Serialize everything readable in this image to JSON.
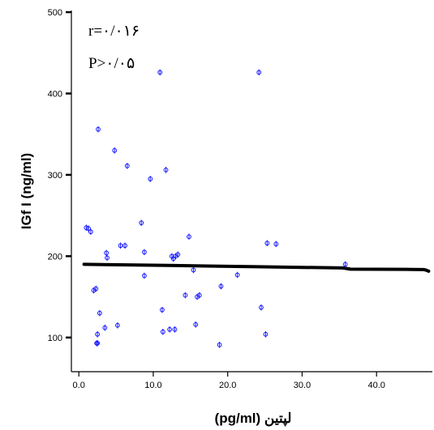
{
  "chart_data": {
    "type": "scatter",
    "xlabel": "لپتین (pg/ml)",
    "ylabel": "IGf I (ng/ml)",
    "xlim": [
      -1,
      47.5
    ],
    "ylim": [
      58,
      502
    ],
    "xticks": [
      0,
      10,
      20,
      30,
      40
    ],
    "xtick_labels": [
      "0.0",
      "10.0",
      "20.0",
      "30.0",
      "40.0"
    ],
    "yticks": [
      100,
      200,
      300,
      400,
      500
    ],
    "ytick_labels": [
      "100",
      "200",
      "300",
      "400",
      "500"
    ],
    "annotations": [
      "r=۰/۰۱۶",
      "P>۰/۰۵"
    ],
    "grid": false,
    "marker_color": "#1a1aff",
    "fit_color": "#000000",
    "points": [
      [
        1.0,
        235
      ],
      [
        1.3,
        234
      ],
      [
        1.6,
        230
      ],
      [
        2.0,
        158
      ],
      [
        2.3,
        160
      ],
      [
        2.4,
        93
      ],
      [
        2.5,
        93
      ],
      [
        2.5,
        104
      ],
      [
        2.6,
        356
      ],
      [
        2.8,
        130
      ],
      [
        3.5,
        112
      ],
      [
        3.7,
        204
      ],
      [
        3.8,
        198
      ],
      [
        4.8,
        330
      ],
      [
        5.2,
        115
      ],
      [
        5.6,
        213
      ],
      [
        6.2,
        213
      ],
      [
        6.5,
        311
      ],
      [
        8.4,
        241
      ],
      [
        8.8,
        176
      ],
      [
        8.8,
        205
      ],
      [
        9.6,
        295
      ],
      [
        10.9,
        426
      ],
      [
        11.2,
        134
      ],
      [
        11.3,
        107
      ],
      [
        11.7,
        306
      ],
      [
        12.2,
        110
      ],
      [
        12.5,
        200
      ],
      [
        12.7,
        197
      ],
      [
        12.9,
        110
      ],
      [
        13.0,
        200
      ],
      [
        13.3,
        202
      ],
      [
        14.3,
        152
      ],
      [
        14.8,
        224
      ],
      [
        15.4,
        183
      ],
      [
        15.7,
        116
      ],
      [
        15.9,
        150
      ],
      [
        16.2,
        152
      ],
      [
        18.9,
        91
      ],
      [
        19.1,
        163
      ],
      [
        21.3,
        177
      ],
      [
        24.2,
        426
      ],
      [
        24.5,
        137
      ],
      [
        25.1,
        104
      ],
      [
        25.3,
        216
      ],
      [
        26.5,
        215
      ],
      [
        35.8,
        190
      ]
    ],
    "fit_line": {
      "x": [
        0.7,
        12,
        24,
        35.5,
        36.5,
        44,
        46.3,
        46.6,
        47
      ],
      "y": [
        190,
        188.6,
        187,
        185.5,
        184,
        183.8,
        183.5,
        183,
        181.5
      ]
    }
  }
}
